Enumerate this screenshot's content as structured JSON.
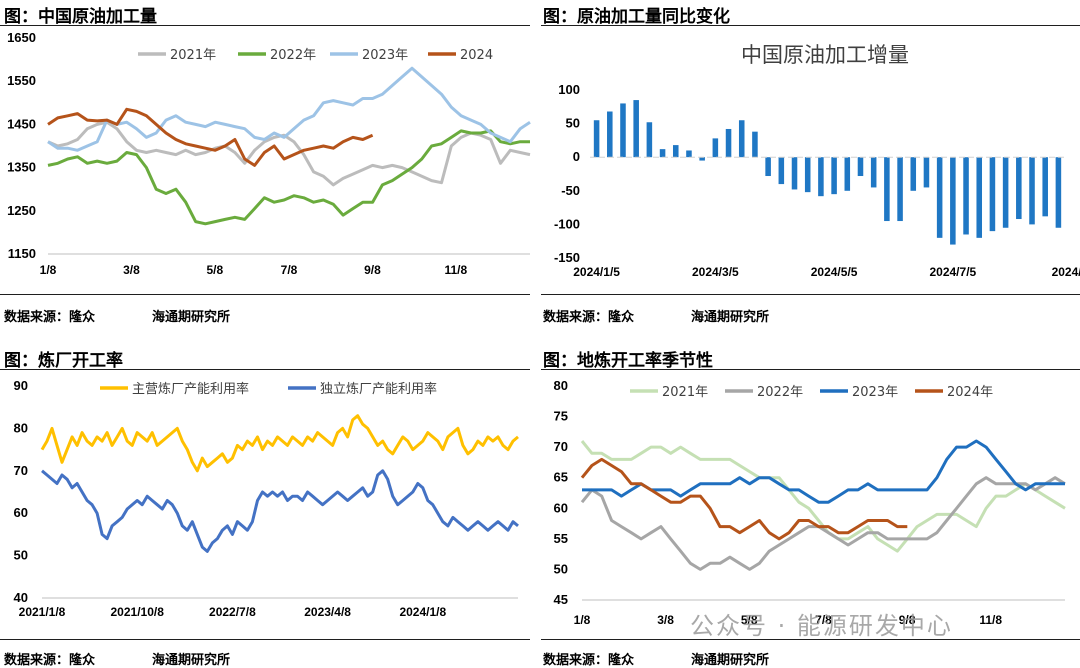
{
  "panels": {
    "p1": {
      "title": "图：中国原油加工量",
      "source": "数据来源：隆众",
      "institute": "海通期研究所"
    },
    "p2": {
      "title": "图：原油加工量同比变化",
      "source": "数据来源：隆众",
      "institute": "海通期研究所"
    },
    "p3": {
      "title": "图：炼厂开工率",
      "source": "数据来源：隆众",
      "institute": "海通期研究所"
    },
    "p4": {
      "title": "图：地炼开工率季节性",
      "source": "数据来源：隆众",
      "institute": "海通期研究所"
    }
  },
  "watermark": "公众号 · 能源研发中心",
  "chart_data": [
    {
      "type": "line",
      "title": "",
      "ylim": [
        1150,
        1650
      ],
      "yticks": [
        1150,
        1250,
        1350,
        1450,
        1550,
        1650
      ],
      "xlim": [
        0,
        52
      ],
      "xticks": [
        {
          "x": 0,
          "label": "1/8"
        },
        {
          "x": 9,
          "label": "3/8"
        },
        {
          "x": 18,
          "label": "5/8"
        },
        {
          "x": 26,
          "label": "7/8"
        },
        {
          "x": 35,
          "label": "9/8"
        },
        {
          "x": 44,
          "label": "11/8"
        }
      ],
      "legend": "top",
      "series": [
        {
          "name": "2021年",
          "color": "#bcbcbc",
          "values": [
            1410,
            1400,
            1405,
            1415,
            1440,
            1450,
            1455,
            1440,
            1410,
            1390,
            1385,
            1390,
            1385,
            1380,
            1390,
            1380,
            1385,
            1395,
            1400,
            1385,
            1360,
            1390,
            1410,
            1420,
            1425,
            1410,
            1380,
            1340,
            1330,
            1310,
            1325,
            1335,
            1345,
            1355,
            1350,
            1355,
            1350,
            1340,
            1330,
            1320,
            1315,
            1400,
            1420,
            1430,
            1425,
            1415,
            1360,
            1390,
            1385,
            1380
          ]
        },
        {
          "name": "2022年",
          "color": "#6aab3d",
          "values": [
            1355,
            1360,
            1370,
            1375,
            1360,
            1365,
            1360,
            1365,
            1385,
            1380,
            1350,
            1300,
            1290,
            1300,
            1270,
            1225,
            1220,
            1225,
            1230,
            1235,
            1230,
            1255,
            1280,
            1270,
            1275,
            1285,
            1280,
            1270,
            1275,
            1265,
            1240,
            1255,
            1270,
            1270,
            1310,
            1320,
            1335,
            1350,
            1370,
            1400,
            1405,
            1420,
            1435,
            1430,
            1430,
            1435,
            1410,
            1405,
            1410,
            1410
          ]
        },
        {
          "name": "2023年",
          "color": "#9dc3e6",
          "values": [
            1410,
            1395,
            1395,
            1390,
            1400,
            1410,
            1460,
            1450,
            1455,
            1440,
            1420,
            1430,
            1460,
            1470,
            1455,
            1450,
            1445,
            1455,
            1450,
            1445,
            1440,
            1420,
            1415,
            1430,
            1420,
            1440,
            1460,
            1470,
            1500,
            1505,
            1500,
            1495,
            1510,
            1510,
            1520,
            1540,
            1560,
            1580,
            1560,
            1540,
            1520,
            1490,
            1470,
            1460,
            1450,
            1430,
            1420,
            1410,
            1440,
            1455
          ]
        },
        {
          "name": "2024",
          "color": "#b5531a",
          "values": [
            1450,
            1465,
            1470,
            1475,
            1460,
            1458,
            1460,
            1450,
            1485,
            1480,
            1470,
            1450,
            1430,
            1415,
            1405,
            1400,
            1395,
            1390,
            1400,
            1415,
            1370,
            1355,
            1385,
            1400,
            1370,
            1380,
            1390,
            1395,
            1400,
            1395,
            1410,
            1420,
            1415,
            1425
          ]
        }
      ]
    },
    {
      "type": "bar",
      "title": "中国原油加工增量",
      "ylim": [
        -150,
        100
      ],
      "yticks": [
        -150,
        -100,
        -50,
        0,
        50,
        100
      ],
      "xticks": [
        {
          "x": 0,
          "label": "2024/1/5"
        },
        {
          "x": 9,
          "label": "2024/3/5"
        },
        {
          "x": 18,
          "label": "2024/5/5"
        },
        {
          "x": 27,
          "label": "2024/7/5"
        },
        {
          "x": 36,
          "label": "2024/9/"
        }
      ],
      "color": "#1f77c4",
      "values": [
        55,
        68,
        80,
        85,
        52,
        12,
        18,
        10,
        -5,
        28,
        42,
        55,
        38,
        -28,
        -40,
        -48,
        -52,
        -58,
        -55,
        -50,
        -28,
        -45,
        -95,
        -95,
        -50,
        -45,
        -120,
        -130,
        -115,
        -120,
        -110,
        -105,
        -92,
        -100,
        -88,
        -105
      ]
    },
    {
      "type": "line",
      "title": "",
      "ylim": [
        40,
        90
      ],
      "yticks": [
        40,
        50,
        60,
        70,
        80,
        90
      ],
      "xlim": [
        0,
        100
      ],
      "xticks": [
        {
          "x": 0,
          "label": "2021/1/8"
        },
        {
          "x": 20,
          "label": "2021/10/8"
        },
        {
          "x": 40,
          "label": "2022/7/8"
        },
        {
          "x": 60,
          "label": "2023/4/8"
        },
        {
          "x": 80,
          "label": "2024/1/8"
        }
      ],
      "legend": "top",
      "series": [
        {
          "name": "主营炼厂产能利用率",
          "color": "#ffc000",
          "values": [
            75,
            77,
            80,
            76,
            72,
            75,
            78,
            76,
            79,
            77,
            76,
            78,
            77,
            79,
            76,
            78,
            80,
            77,
            76,
            79,
            78,
            77,
            79,
            76,
            77,
            78,
            79,
            80,
            77,
            75,
            72,
            70,
            73,
            71,
            72,
            73,
            74,
            72,
            73,
            76,
            75,
            77,
            76,
            78,
            75,
            77,
            76,
            78,
            77,
            76,
            78,
            77,
            76,
            78,
            77,
            79,
            78,
            77,
            76,
            79,
            80,
            78,
            82,
            83,
            81,
            80,
            78,
            76,
            77,
            75,
            74,
            76,
            78,
            77,
            75,
            76,
            77,
            79,
            78,
            77,
            75,
            78,
            79,
            80,
            76,
            74,
            75,
            77,
            76,
            78,
            77,
            78,
            76,
            75,
            77,
            78
          ]
        },
        {
          "name": "独立炼厂产能利用率",
          "color": "#4472c4",
          "values": [
            70,
            69,
            68,
            67,
            69,
            68,
            66,
            67,
            65,
            63,
            62,
            60,
            55,
            54,
            57,
            58,
            59,
            61,
            62,
            63,
            62,
            64,
            63,
            62,
            61,
            63,
            62,
            60,
            57,
            56,
            58,
            55,
            52,
            51,
            53,
            54,
            56,
            57,
            55,
            58,
            57,
            56,
            58,
            63,
            65,
            64,
            65,
            64,
            65,
            63,
            64,
            64,
            63,
            65,
            64,
            63,
            62,
            63,
            64,
            65,
            64,
            63,
            64,
            65,
            66,
            64,
            65,
            69,
            70,
            68,
            64,
            62,
            63,
            64,
            65,
            67,
            66,
            63,
            62,
            60,
            58,
            57,
            59,
            58,
            57,
            56,
            57,
            58,
            57,
            56,
            57,
            58,
            57,
            56,
            58,
            57
          ]
        }
      ]
    },
    {
      "type": "line",
      "title": "",
      "ylim": [
        45,
        80
      ],
      "yticks": [
        45,
        50,
        55,
        60,
        65,
        70,
        75,
        80
      ],
      "xlim": [
        0,
        52
      ],
      "xticks": [
        {
          "x": 0,
          "label": "1/8"
        },
        {
          "x": 9,
          "label": "3/8"
        },
        {
          "x": 18,
          "label": "5/8"
        },
        {
          "x": 26,
          "label": "7/8"
        },
        {
          "x": 35,
          "label": "9/8"
        },
        {
          "x": 44,
          "label": "11/8"
        }
      ],
      "legend": "top",
      "series": [
        {
          "name": "2021年",
          "color": "#c5e0b4",
          "values": [
            71,
            69,
            69,
            68,
            68,
            68,
            69,
            70,
            70,
            69,
            70,
            69,
            68,
            68,
            68,
            68,
            67,
            66,
            65,
            65,
            65,
            63,
            61,
            60,
            58,
            56,
            55,
            55,
            56,
            57,
            55,
            54,
            53,
            55,
            57,
            58,
            59,
            59,
            59,
            58,
            57,
            60,
            62,
            62,
            63,
            64,
            63,
            62,
            61,
            60
          ]
        },
        {
          "name": "2022年",
          "color": "#a6a6a6",
          "values": [
            61,
            63,
            62,
            58,
            57,
            56,
            55,
            56,
            57,
            55,
            53,
            51,
            50,
            51,
            51,
            52,
            51,
            50,
            51,
            53,
            54,
            55,
            56,
            57,
            57,
            56,
            55,
            54,
            55,
            56,
            56,
            55,
            55,
            55,
            55,
            55,
            56,
            58,
            60,
            62,
            64,
            65,
            64,
            64,
            64,
            64,
            63,
            64,
            65,
            64
          ]
        },
        {
          "name": "2023年",
          "color": "#1f6fbf",
          "values": [
            63,
            63,
            63,
            63,
            62,
            63,
            64,
            63,
            63,
            63,
            62,
            63,
            64,
            64,
            64,
            64,
            65,
            64,
            65,
            65,
            64,
            63,
            63,
            62,
            61,
            61,
            62,
            63,
            63,
            64,
            63,
            63,
            63,
            63,
            63,
            63,
            65,
            68,
            70,
            70,
            71,
            70,
            68,
            66,
            64,
            63,
            64,
            64,
            64,
            64
          ]
        },
        {
          "name": "2024年",
          "color": "#b5531a",
          "values": [
            65,
            67,
            68,
            67,
            66,
            64,
            64,
            63,
            62,
            61,
            61,
            62,
            62,
            60,
            57,
            57,
            56,
            57,
            58,
            56,
            55,
            56,
            58,
            58,
            57,
            57,
            56,
            56,
            57,
            58,
            58,
            58,
            57,
            57
          ]
        }
      ]
    }
  ]
}
